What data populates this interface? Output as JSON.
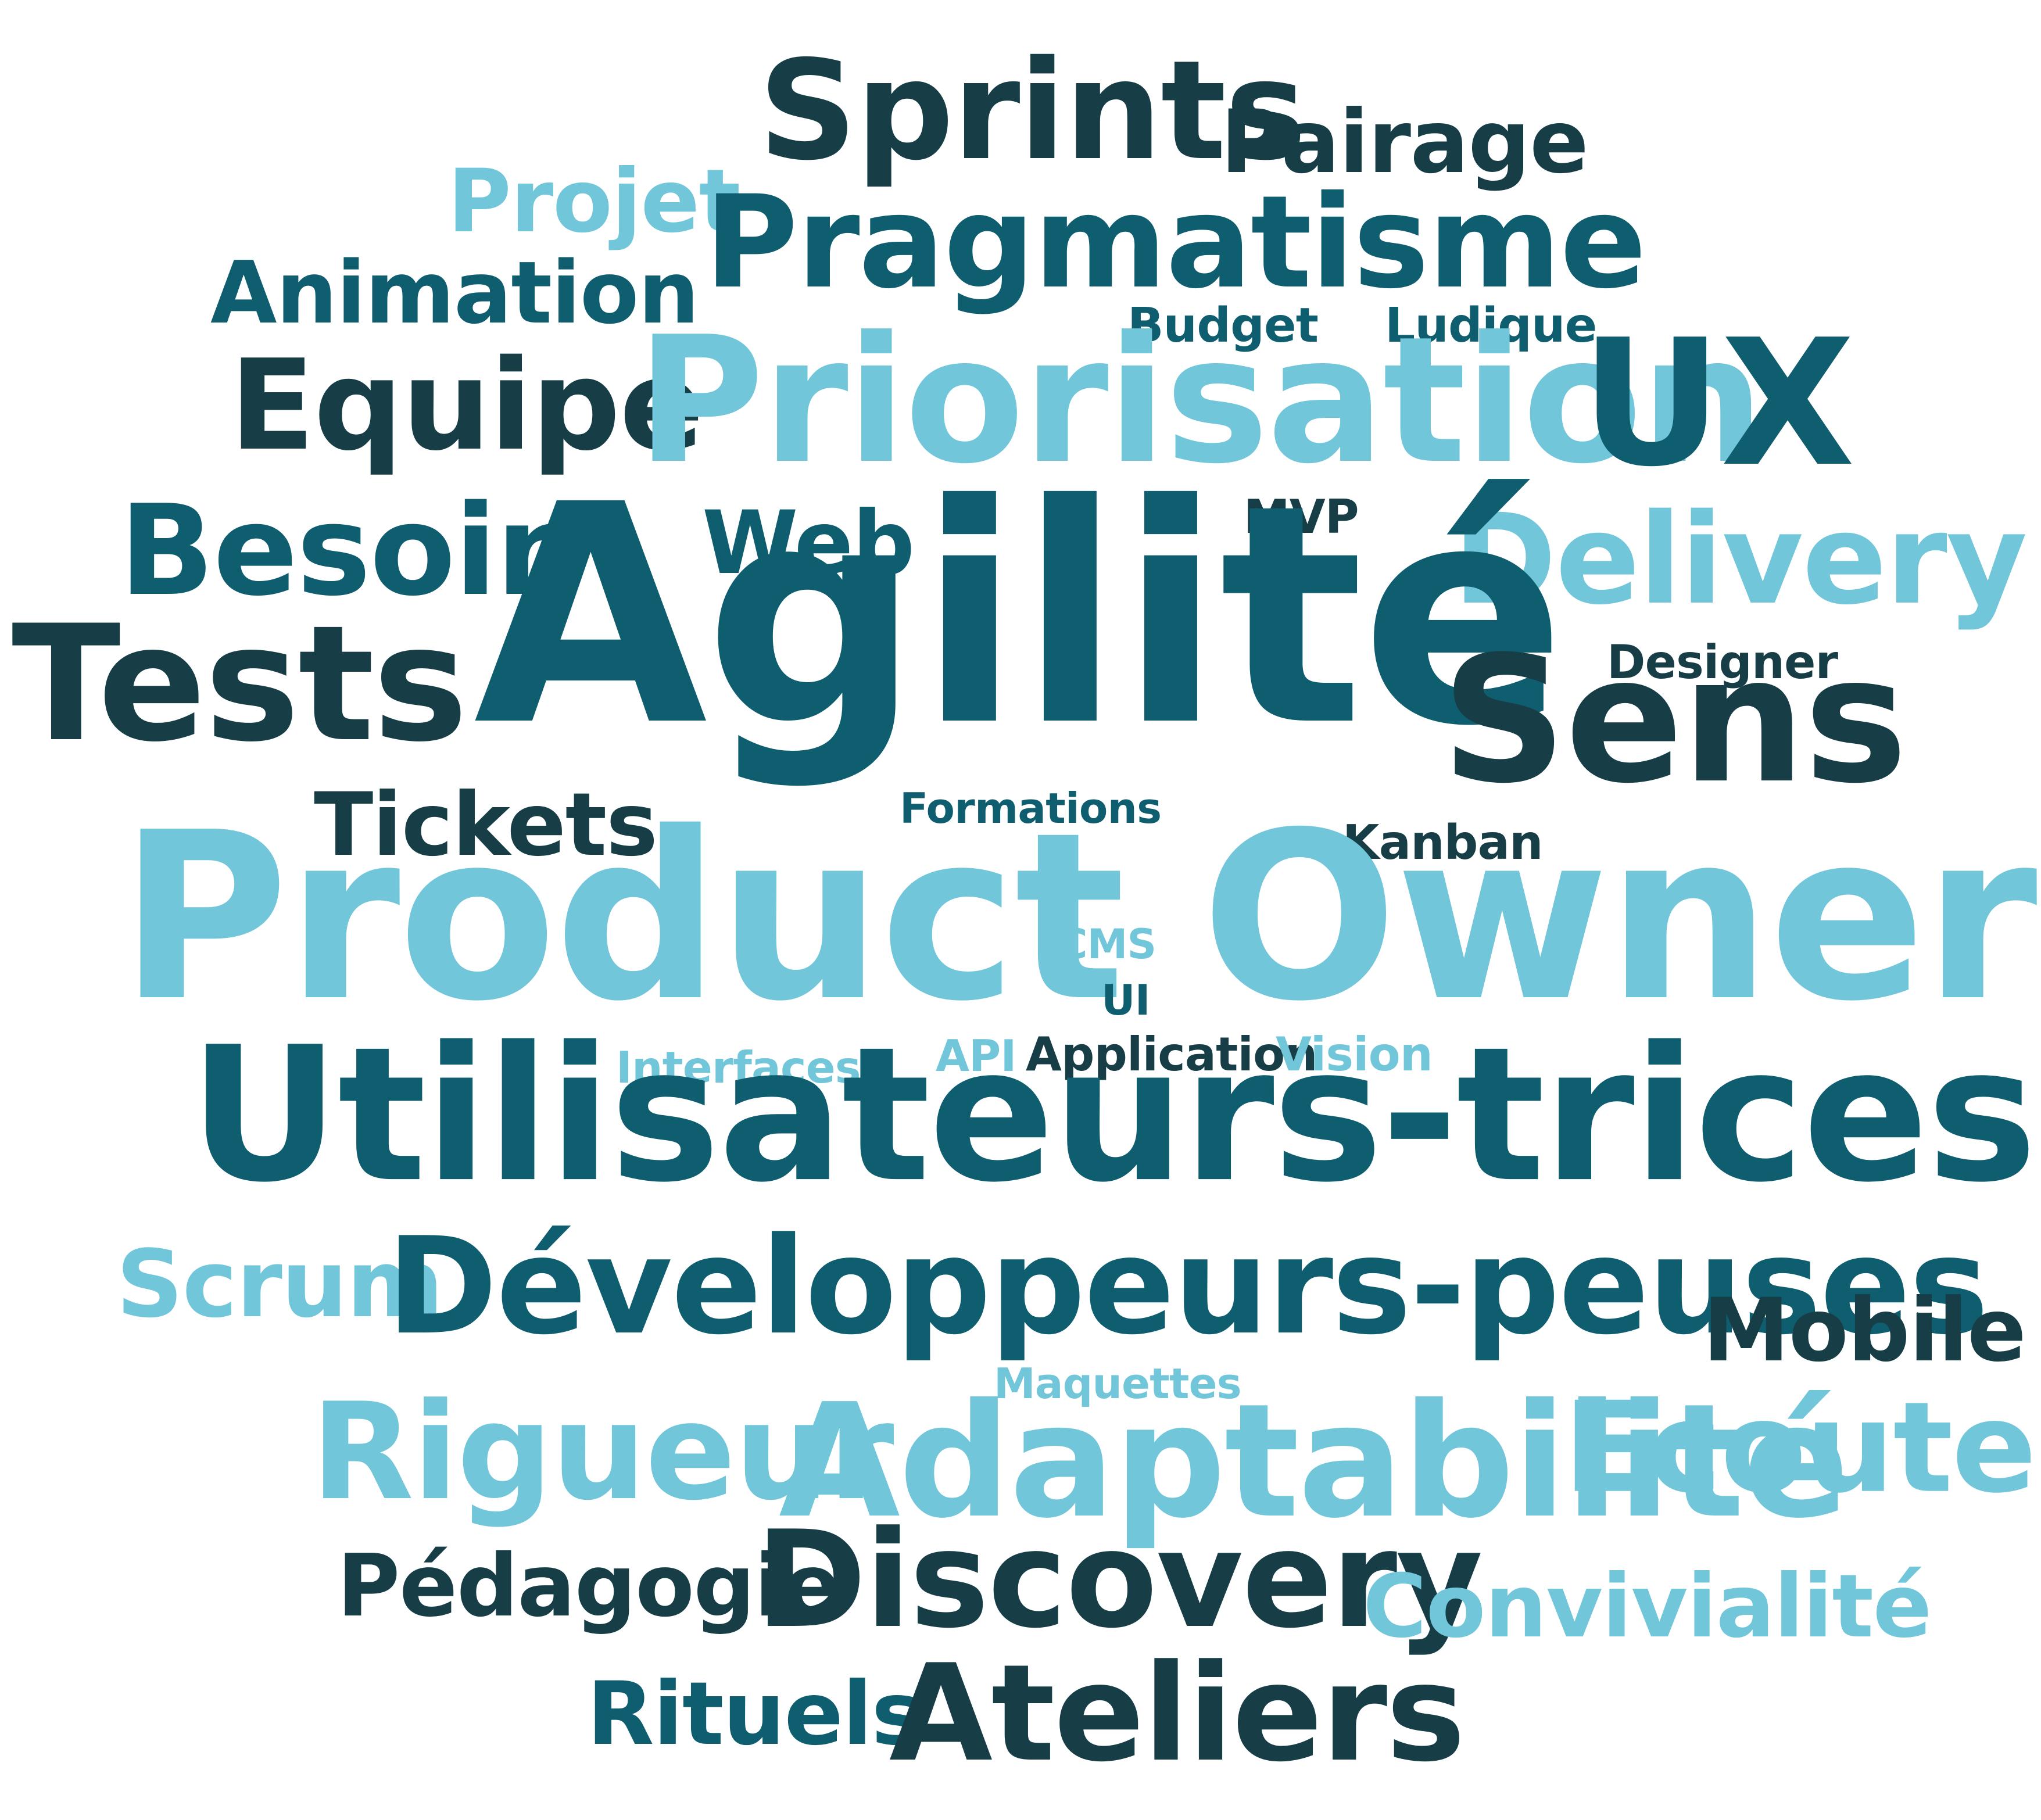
{
  "words": [
    {
      "text": "Sprints",
      "color": "#173e47"
    },
    {
      "text": "Pairage",
      "color": "#173e47"
    },
    {
      "text": "Projet",
      "color": "#71c6da"
    },
    {
      "text": "Pragmatisme",
      "color": "#0f5e70"
    },
    {
      "text": "Animation",
      "color": "#0f5e70"
    },
    {
      "text": "Budget",
      "color": "#0f5e70"
    },
    {
      "text": "Ludique",
      "color": "#0f5e70"
    },
    {
      "text": "Equipe",
      "color": "#173e47"
    },
    {
      "text": "Priorisation",
      "color": "#71c6da"
    },
    {
      "text": "UX",
      "color": "#0f5e70"
    },
    {
      "text": "MVP",
      "color": "#173e47"
    },
    {
      "text": "Besoin",
      "color": "#0f5e70"
    },
    {
      "text": "Web",
      "color": "#0f5e70"
    },
    {
      "text": "Delivery",
      "color": "#71c6da"
    },
    {
      "text": "Agilité",
      "color": "#0f5e70"
    },
    {
      "text": "Designer",
      "color": "#173e47"
    },
    {
      "text": "Tests",
      "color": "#173e47"
    },
    {
      "text": "Sens",
      "color": "#173e47"
    },
    {
      "text": "Tickets",
      "color": "#173e47"
    },
    {
      "text": "Formations",
      "color": "#0f5e70"
    },
    {
      "text": "Kanban",
      "color": "#173e47"
    },
    {
      "text": "Product Owner",
      "color": "#71c6da"
    },
    {
      "text": "CMS",
      "color": "#71c6da"
    },
    {
      "text": "UI",
      "color": "#0f5e70"
    },
    {
      "text": "Interfaces",
      "color": "#71c6da"
    },
    {
      "text": "API",
      "color": "#71c6da"
    },
    {
      "text": "Application",
      "color": "#173e47"
    },
    {
      "text": "Vision",
      "color": "#71c6da"
    },
    {
      "text": "Utilisateurs-trices",
      "color": "#0f5e70"
    },
    {
      "text": "Scrum",
      "color": "#71c6da"
    },
    {
      "text": "Développeurs-peuses",
      "color": "#0f5e70"
    },
    {
      "text": "Mobile",
      "color": "#173e47"
    },
    {
      "text": "Maquettes",
      "color": "#71c6da"
    },
    {
      "text": "Rigueur",
      "color": "#71c6da"
    },
    {
      "text": "Adaptabilité",
      "color": "#71c6da"
    },
    {
      "text": "Ecoute",
      "color": "#71c6da"
    },
    {
      "text": "Pédagogie",
      "color": "#173e47"
    },
    {
      "text": "Discovery",
      "color": "#173e47"
    },
    {
      "text": "Convivialité",
      "color": "#71c6da"
    },
    {
      "text": "Rituels",
      "color": "#0f5e70"
    },
    {
      "text": "Ateliers",
      "color": "#173e47"
    }
  ]
}
